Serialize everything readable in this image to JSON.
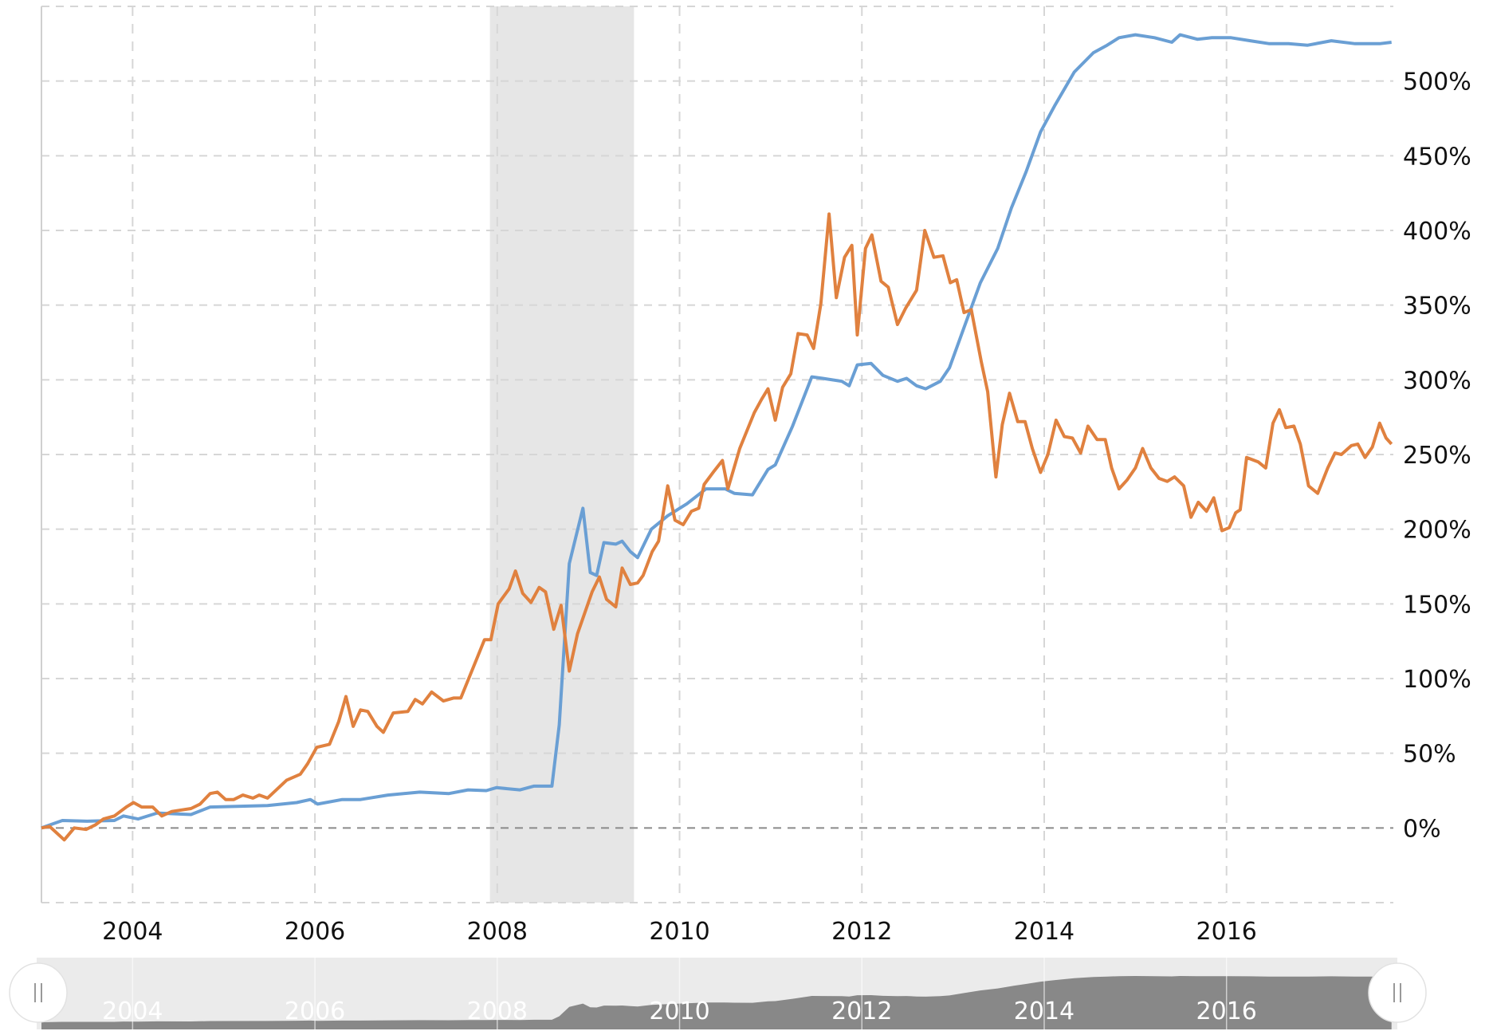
{
  "chart_data": {
    "type": "line",
    "title": "",
    "xlabel": "",
    "ylabel": "",
    "xlim": [
      2003.0,
      2017.83
    ],
    "ylim": [
      -50,
      550
    ],
    "grid": true,
    "y_ticks": [
      0,
      50,
      100,
      150,
      200,
      250,
      300,
      350,
      400,
      450,
      500
    ],
    "y_tick_labels": [
      "0%",
      "50%",
      "100%",
      "150%",
      "200%",
      "250%",
      "300%",
      "350%",
      "400%",
      "450%",
      "500%"
    ],
    "x_ticks": [
      2004,
      2006,
      2008,
      2010,
      2012,
      2014,
      2016
    ],
    "x_tick_labels": [
      "2004",
      "2006",
      "2008",
      "2010",
      "2012",
      "2014",
      "2016"
    ],
    "shaded_regions": [
      {
        "label": "recession",
        "from": 2007.92,
        "to": 2009.5,
        "color": "#e6e6e6"
      }
    ],
    "series": [
      {
        "name": "blue-series",
        "color": "#6a9fd4",
        "points": [
          [
            2003.0,
            0
          ],
          [
            2003.23,
            5
          ],
          [
            2003.5,
            4.5
          ],
          [
            2003.8,
            5
          ],
          [
            2003.9,
            8
          ],
          [
            2004.06,
            6
          ],
          [
            2004.27,
            10
          ],
          [
            2004.64,
            9
          ],
          [
            2004.85,
            14
          ],
          [
            2005.48,
            15
          ],
          [
            2005.8,
            17
          ],
          [
            2005.95,
            19
          ],
          [
            2006.03,
            16
          ],
          [
            2006.3,
            19
          ],
          [
            2006.5,
            19
          ],
          [
            2006.8,
            22
          ],
          [
            2007.15,
            24
          ],
          [
            2007.47,
            23
          ],
          [
            2007.68,
            25.5
          ],
          [
            2007.88,
            25
          ],
          [
            2007.99,
            27
          ],
          [
            2008.25,
            25.5
          ],
          [
            2008.4,
            28
          ],
          [
            2008.6,
            28
          ],
          [
            2008.68,
            69
          ],
          [
            2008.79,
            177
          ],
          [
            2008.94,
            214
          ],
          [
            2009.02,
            171
          ],
          [
            2009.09,
            169
          ],
          [
            2009.17,
            191
          ],
          [
            2009.3,
            190
          ],
          [
            2009.37,
            192
          ],
          [
            2009.46,
            185
          ],
          [
            2009.54,
            181
          ],
          [
            2009.69,
            200
          ],
          [
            2009.87,
            209
          ],
          [
            2010.08,
            217
          ],
          [
            2010.29,
            227
          ],
          [
            2010.5,
            227
          ],
          [
            2010.6,
            224
          ],
          [
            2010.8,
            223
          ],
          [
            2010.97,
            240
          ],
          [
            2011.05,
            243
          ],
          [
            2011.24,
            269
          ],
          [
            2011.45,
            302
          ],
          [
            2011.57,
            301
          ],
          [
            2011.78,
            299
          ],
          [
            2011.86,
            296
          ],
          [
            2011.95,
            310
          ],
          [
            2012.1,
            311
          ],
          [
            2012.23,
            303
          ],
          [
            2012.39,
            299
          ],
          [
            2012.49,
            301
          ],
          [
            2012.6,
            296
          ],
          [
            2012.7,
            294
          ],
          [
            2012.86,
            299
          ],
          [
            2012.96,
            308
          ],
          [
            2013.12,
            335
          ],
          [
            2013.3,
            365
          ],
          [
            2013.49,
            388
          ],
          [
            2013.64,
            415
          ],
          [
            2013.8,
            439
          ],
          [
            2013.96,
            466
          ],
          [
            2014.12,
            484
          ],
          [
            2014.33,
            506
          ],
          [
            2014.54,
            519
          ],
          [
            2014.69,
            524
          ],
          [
            2014.82,
            529
          ],
          [
            2015.0,
            531
          ],
          [
            2015.21,
            529
          ],
          [
            2015.4,
            526
          ],
          [
            2015.49,
            531
          ],
          [
            2015.68,
            528
          ],
          [
            2015.84,
            529
          ],
          [
            2016.05,
            529
          ],
          [
            2016.26,
            527
          ],
          [
            2016.47,
            525
          ],
          [
            2016.68,
            525
          ],
          [
            2016.89,
            524
          ],
          [
            2017.15,
            527
          ],
          [
            2017.41,
            525
          ],
          [
            2017.68,
            525
          ],
          [
            2017.81,
            526
          ]
        ]
      },
      {
        "name": "orange-series",
        "color": "#e0813f",
        "points": [
          [
            2003.0,
            0
          ],
          [
            2003.09,
            1
          ],
          [
            2003.25,
            -8
          ],
          [
            2003.36,
            0
          ],
          [
            2003.49,
            -1
          ],
          [
            2003.59,
            2
          ],
          [
            2003.68,
            6
          ],
          [
            2003.8,
            8
          ],
          [
            2003.93,
            14
          ],
          [
            2004.01,
            17
          ],
          [
            2004.1,
            14
          ],
          [
            2004.22,
            14
          ],
          [
            2004.32,
            8
          ],
          [
            2004.43,
            11
          ],
          [
            2004.64,
            13
          ],
          [
            2004.74,
            16
          ],
          [
            2004.85,
            23
          ],
          [
            2004.93,
            24
          ],
          [
            2005.02,
            19
          ],
          [
            2005.11,
            19
          ],
          [
            2005.21,
            22
          ],
          [
            2005.32,
            20
          ],
          [
            2005.39,
            22
          ],
          [
            2005.48,
            20
          ],
          [
            2005.69,
            32
          ],
          [
            2005.84,
            36
          ],
          [
            2005.92,
            43
          ],
          [
            2006.02,
            54
          ],
          [
            2006.16,
            56
          ],
          [
            2006.26,
            71
          ],
          [
            2006.34,
            88
          ],
          [
            2006.42,
            68
          ],
          [
            2006.5,
            79
          ],
          [
            2006.58,
            78
          ],
          [
            2006.68,
            68
          ],
          [
            2006.75,
            64
          ],
          [
            2006.86,
            77
          ],
          [
            2007.02,
            78
          ],
          [
            2007.1,
            86
          ],
          [
            2007.18,
            83
          ],
          [
            2007.28,
            91
          ],
          [
            2007.41,
            85
          ],
          [
            2007.52,
            87
          ],
          [
            2007.6,
            87
          ],
          [
            2007.78,
            114
          ],
          [
            2007.86,
            126
          ],
          [
            2007.93,
            126
          ],
          [
            2008.01,
            150
          ],
          [
            2008.13,
            160
          ],
          [
            2008.2,
            172
          ],
          [
            2008.28,
            157
          ],
          [
            2008.37,
            151
          ],
          [
            2008.46,
            161
          ],
          [
            2008.53,
            158
          ],
          [
            2008.62,
            133
          ],
          [
            2008.7,
            149
          ],
          [
            2008.79,
            105
          ],
          [
            2008.88,
            130
          ],
          [
            2009.04,
            158
          ],
          [
            2009.12,
            168
          ],
          [
            2009.2,
            153
          ],
          [
            2009.3,
            148
          ],
          [
            2009.37,
            174
          ],
          [
            2009.46,
            163
          ],
          [
            2009.54,
            164
          ],
          [
            2009.6,
            169
          ],
          [
            2009.7,
            185
          ],
          [
            2009.77,
            192
          ],
          [
            2009.87,
            229
          ],
          [
            2009.95,
            206
          ],
          [
            2010.04,
            203
          ],
          [
            2010.13,
            212
          ],
          [
            2010.21,
            214
          ],
          [
            2010.27,
            230
          ],
          [
            2010.38,
            239
          ],
          [
            2010.47,
            246
          ],
          [
            2010.53,
            227
          ],
          [
            2010.66,
            254
          ],
          [
            2010.82,
            278
          ],
          [
            2010.9,
            287
          ],
          [
            2010.97,
            294
          ],
          [
            2011.05,
            273
          ],
          [
            2011.13,
            295
          ],
          [
            2011.22,
            304
          ],
          [
            2011.3,
            331
          ],
          [
            2011.4,
            330
          ],
          [
            2011.47,
            321
          ],
          [
            2011.55,
            351
          ],
          [
            2011.64,
            411
          ],
          [
            2011.72,
            355
          ],
          [
            2011.81,
            382
          ],
          [
            2011.89,
            390
          ],
          [
            2011.95,
            330
          ],
          [
            2012.04,
            388
          ],
          [
            2012.11,
            397
          ],
          [
            2012.21,
            366
          ],
          [
            2012.29,
            362
          ],
          [
            2012.39,
            337
          ],
          [
            2012.48,
            348
          ],
          [
            2012.6,
            360
          ],
          [
            2012.69,
            400
          ],
          [
            2012.79,
            382
          ],
          [
            2012.89,
            383
          ],
          [
            2012.97,
            365
          ],
          [
            2013.04,
            367
          ],
          [
            2013.12,
            345
          ],
          [
            2013.2,
            347
          ],
          [
            2013.31,
            312
          ],
          [
            2013.38,
            292
          ],
          [
            2013.47,
            235
          ],
          [
            2013.54,
            270
          ],
          [
            2013.62,
            291
          ],
          [
            2013.71,
            272
          ],
          [
            2013.79,
            272
          ],
          [
            2013.87,
            254
          ],
          [
            2013.96,
            238
          ],
          [
            2014.04,
            250
          ],
          [
            2014.13,
            273
          ],
          [
            2014.22,
            262
          ],
          [
            2014.31,
            261
          ],
          [
            2014.4,
            251
          ],
          [
            2014.48,
            269
          ],
          [
            2014.58,
            260
          ],
          [
            2014.67,
            260
          ],
          [
            2014.74,
            241
          ],
          [
            2014.82,
            227
          ],
          [
            2014.91,
            233
          ],
          [
            2015.0,
            241
          ],
          [
            2015.08,
            254
          ],
          [
            2015.17,
            241
          ],
          [
            2015.26,
            234
          ],
          [
            2015.35,
            232
          ],
          [
            2015.43,
            235
          ],
          [
            2015.53,
            229
          ],
          [
            2015.61,
            208
          ],
          [
            2015.69,
            218
          ],
          [
            2015.78,
            212
          ],
          [
            2015.86,
            221
          ],
          [
            2015.95,
            199
          ],
          [
            2016.03,
            201
          ],
          [
            2016.1,
            211
          ],
          [
            2016.15,
            213
          ],
          [
            2016.22,
            248
          ],
          [
            2016.35,
            245
          ],
          [
            2016.43,
            241
          ],
          [
            2016.51,
            271
          ],
          [
            2016.58,
            280
          ],
          [
            2016.65,
            268
          ],
          [
            2016.74,
            269
          ],
          [
            2016.81,
            257
          ],
          [
            2016.9,
            229
          ],
          [
            2017.0,
            224
          ],
          [
            2017.11,
            241
          ],
          [
            2017.19,
            251
          ],
          [
            2017.26,
            250
          ],
          [
            2017.37,
            256
          ],
          [
            2017.44,
            257
          ],
          [
            2017.52,
            248
          ],
          [
            2017.6,
            255
          ],
          [
            2017.68,
            271
          ],
          [
            2017.75,
            261
          ],
          [
            2017.81,
            257
          ]
        ]
      }
    ],
    "navigator": {
      "series": "blue-series",
      "x_tick_labels": [
        "2004",
        "2006",
        "2008",
        "2010",
        "2012",
        "2014",
        "2016"
      ],
      "fill_color": "#888888",
      "background_color": "#ebebeb"
    }
  }
}
